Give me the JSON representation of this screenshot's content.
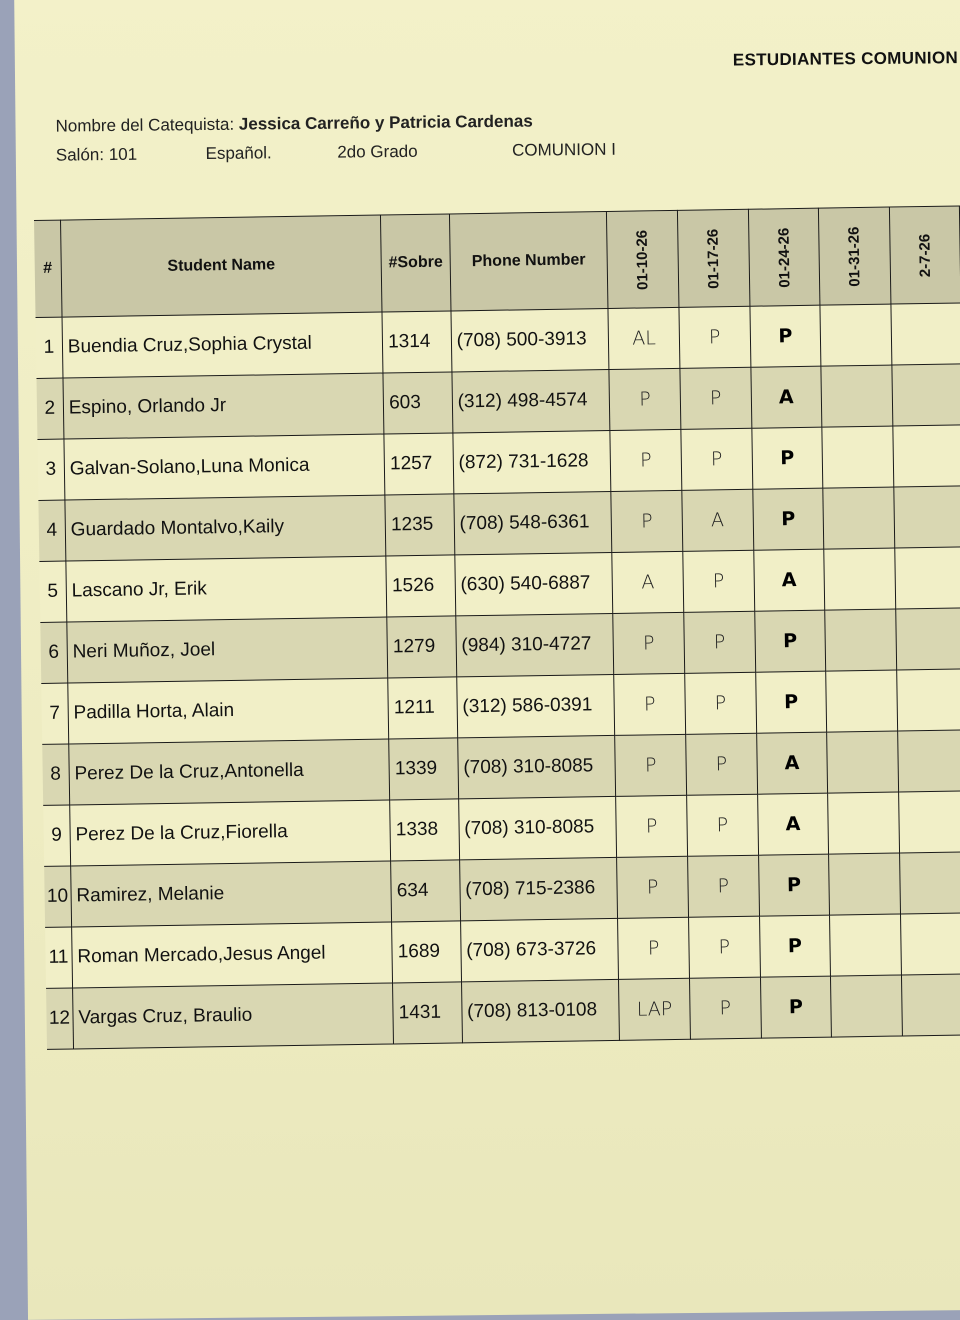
{
  "document": {
    "title": "ESTUDIANTES COMUNION",
    "catechist_label": "Nombre del Catequista:",
    "catechist_names": "Jessica Carreño y Patricia Cardenas",
    "room": "Salón: 101",
    "language": "Español.",
    "grade": "2do Grado",
    "program": "COMUNION I"
  },
  "table": {
    "headers": {
      "num": "#",
      "name": "Student Name",
      "sobre": "#Sobre",
      "phone": "Phone Number"
    },
    "dates": [
      "01-10-26",
      "01-17-26",
      "01-24-26",
      "01-31-26",
      "2-7-26"
    ],
    "rows": [
      {
        "num": "1",
        "name": "Buendia Cruz,Sophia Crystal",
        "sobre": "1314",
        "phone": "(708) 500-3913",
        "att": [
          "AL",
          "P",
          "P",
          "",
          ""
        ]
      },
      {
        "num": "2",
        "name": "Espino, Orlando Jr",
        "sobre": "603",
        "phone": "(312) 498-4574",
        "att": [
          "P",
          "P",
          "A",
          "",
          ""
        ]
      },
      {
        "num": "3",
        "name": "Galvan-Solano,Luna Monica",
        "sobre": "1257",
        "phone": "(872) 731-1628",
        "att": [
          "P",
          "P",
          "P",
          "",
          ""
        ]
      },
      {
        "num": "4",
        "name": "Guardado Montalvo,Kaily",
        "sobre": "1235",
        "phone": "(708) 548-6361",
        "att": [
          "P",
          "A",
          "P",
          "",
          ""
        ]
      },
      {
        "num": "5",
        "name": "Lascano Jr, Erik",
        "sobre": "1526",
        "phone": "(630) 540-6887",
        "att": [
          "A",
          "P",
          "A",
          "",
          ""
        ]
      },
      {
        "num": "6",
        "name": "Neri Muñoz, Joel",
        "sobre": "1279",
        "phone": "(984) 310-4727",
        "att": [
          "P",
          "P",
          "P",
          "",
          ""
        ]
      },
      {
        "num": "7",
        "name": "Padilla Horta, Alain",
        "sobre": "1211",
        "phone": "(312) 586-0391",
        "att": [
          "P",
          "P",
          "P",
          "",
          ""
        ]
      },
      {
        "num": "8",
        "name": "Perez De la Cruz,Antonella",
        "sobre": "1339",
        "phone": "(708) 310-8085",
        "att": [
          "P",
          "P",
          "A",
          "",
          ""
        ]
      },
      {
        "num": "9",
        "name": "Perez De la Cruz,Fiorella",
        "sobre": "1338",
        "phone": "(708) 310-8085",
        "att": [
          "P",
          "P",
          "A",
          "",
          ""
        ]
      },
      {
        "num": "10",
        "name": "Ramirez, Melanie",
        "sobre": "634",
        "phone": "(708) 715-2386",
        "att": [
          "P",
          "P",
          "P",
          "",
          ""
        ]
      },
      {
        "num": "11",
        "name": "Roman Mercado,Jesus Angel",
        "sobre": "1689",
        "phone": "(708) 673-3726",
        "att": [
          "P",
          "P",
          "P",
          "",
          ""
        ]
      },
      {
        "num": "12",
        "name": "Vargas Cruz, Braulio",
        "sobre": "1431",
        "phone": "(708) 813-0108",
        "att": [
          "LAP",
          "P",
          "P",
          "",
          ""
        ]
      }
    ]
  }
}
